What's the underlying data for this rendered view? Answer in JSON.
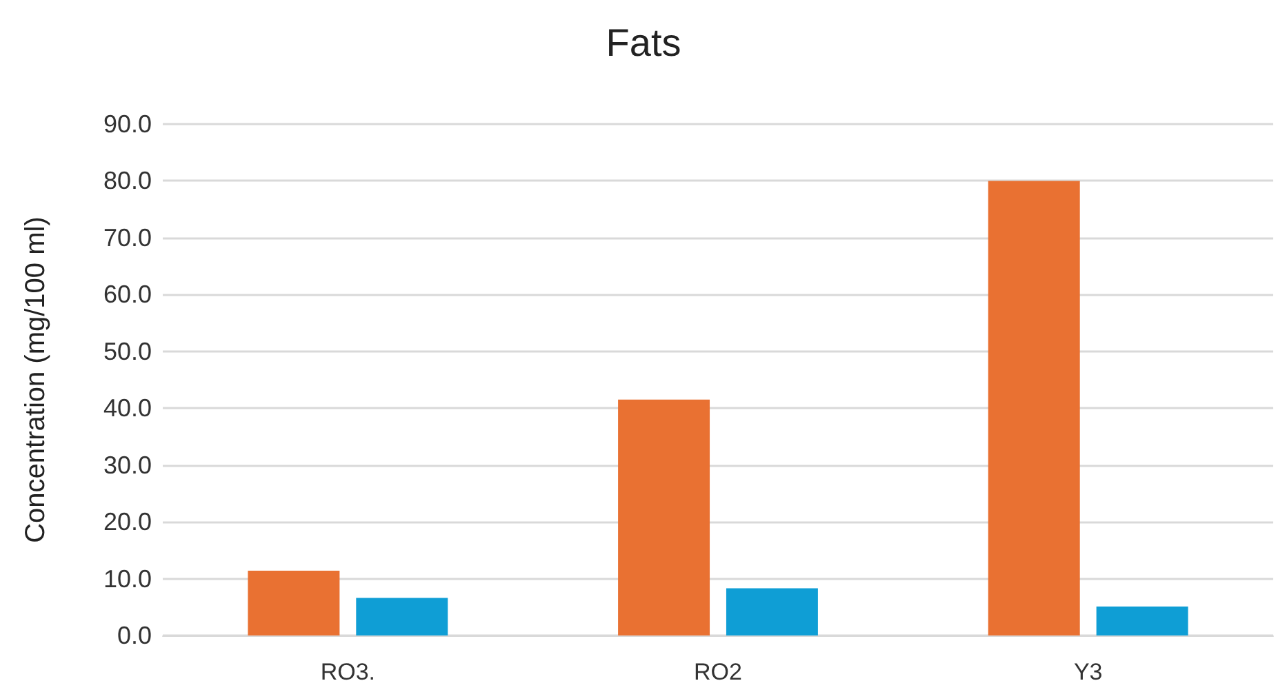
{
  "chart_data": {
    "type": "bar",
    "title": "Fats",
    "ylabel": "Concentration (mg/100 ml)",
    "categories": [
      "RO3.",
      "RO2",
      "Y3"
    ],
    "series": [
      {
        "color": "#e97132",
        "values": [
          11.4,
          41.5,
          80.0
        ]
      },
      {
        "color": "#0f9ed5",
        "values": [
          6.6,
          8.3,
          5.1
        ]
      }
    ],
    "ylim": [
      0,
      90
    ],
    "yticks": [
      {
        "value": 0,
        "label": "0.0"
      },
      {
        "value": 10,
        "label": "10.0"
      },
      {
        "value": 20,
        "label": "20.0"
      },
      {
        "value": 30,
        "label": "30.0"
      },
      {
        "value": 40,
        "label": "40.0"
      },
      {
        "value": 50,
        "label": "50.0"
      },
      {
        "value": 60,
        "label": "60.0"
      },
      {
        "value": 70,
        "label": "70.0"
      },
      {
        "value": 80,
        "label": "80.0"
      },
      {
        "value": 90,
        "label": "90.0"
      }
    ],
    "grid": "y"
  }
}
